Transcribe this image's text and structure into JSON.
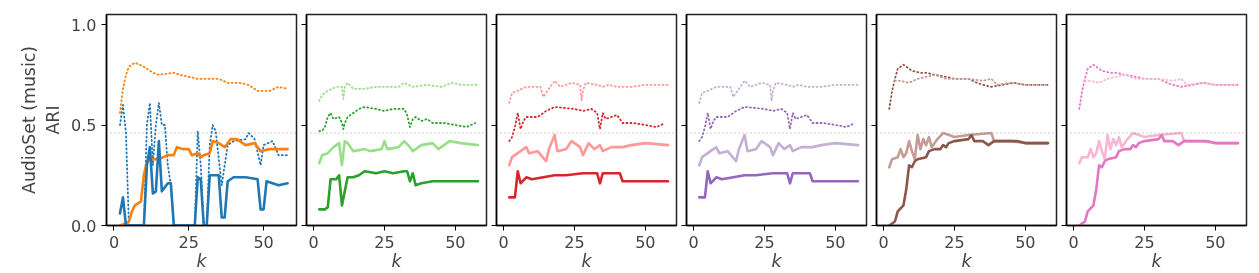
{
  "chart_data": [
    {
      "type": "line",
      "ylabel": "AudioSet (music)\nARI",
      "xlabel": "k",
      "xlim": [
        -2.5,
        61
      ],
      "ylim": [
        0,
        1.05
      ],
      "xticks": [
        0,
        25,
        50
      ],
      "yticks": [
        {
          "value": 0,
          "label": "0.0"
        },
        {
          "value": 0.5,
          "label": "0.5"
        },
        {
          "value": 1,
          "label": "1.0"
        }
      ],
      "grid": false,
      "ref_lines": [
        {
          "axis": "y",
          "value": 0.46,
          "color": "#808080",
          "line_style": "dotted"
        }
      ],
      "series": [
        {
          "color": "#ff7f0e",
          "line_style": "dotted",
          "x": [
            2,
            3,
            4,
            5,
            7,
            10,
            13,
            15,
            20,
            22,
            25,
            28,
            31,
            35,
            38,
            42,
            45,
            48,
            52,
            55,
            58
          ],
          "values": [
            0.56,
            0.68,
            0.75,
            0.79,
            0.81,
            0.79,
            0.76,
            0.75,
            0.76,
            0.75,
            0.74,
            0.73,
            0.73,
            0.73,
            0.71,
            0.71,
            0.7,
            0.67,
            0.67,
            0.69,
            0.68
          ]
        },
        {
          "color": "#1f77b4",
          "line_style": "dotted",
          "x": [
            2,
            3,
            4,
            5,
            10,
            11,
            12,
            13,
            14,
            15,
            16,
            17,
            18,
            19,
            20,
            27,
            28,
            29,
            30,
            31,
            32,
            33,
            34,
            36,
            37,
            38,
            40,
            44,
            45,
            47,
            49,
            50,
            53,
            55,
            58
          ],
          "values": [
            0.5,
            0.6,
            0.46,
            0.0,
            0.0,
            0.5,
            0.61,
            0.3,
            0.5,
            0.61,
            0.5,
            0.5,
            0.3,
            0.2,
            0.0,
            0.0,
            0.47,
            0.3,
            0.0,
            0.0,
            0.4,
            0.5,
            0.47,
            0.2,
            0.3,
            0.4,
            0.42,
            0.43,
            0.46,
            0.43,
            0.3,
            0.4,
            0.42,
            0.35,
            0.35
          ]
        },
        {
          "color": "#ff7f0e",
          "line_style": "solid",
          "x": [
            2,
            4,
            5,
            6,
            7,
            9,
            10,
            11,
            13,
            15,
            18,
            20,
            21,
            23,
            25,
            26,
            28,
            29,
            30,
            32,
            33,
            35,
            37,
            39,
            41,
            42,
            44,
            47,
            49,
            52,
            55,
            58
          ],
          "values": [
            0.0,
            0.01,
            0.02,
            0.07,
            0.1,
            0.12,
            0.25,
            0.32,
            0.33,
            0.33,
            0.35,
            0.35,
            0.39,
            0.38,
            0.38,
            0.35,
            0.36,
            0.34,
            0.35,
            0.36,
            0.42,
            0.41,
            0.39,
            0.43,
            0.43,
            0.42,
            0.4,
            0.41,
            0.37,
            0.38,
            0.38,
            0.38
          ]
        },
        {
          "color": "#1f77b4",
          "line_style": "solid",
          "x": [
            2,
            3,
            4,
            10,
            11,
            12,
            13,
            14,
            15,
            16,
            18,
            19,
            20,
            27,
            28,
            29,
            30,
            31,
            32,
            35,
            36,
            37,
            38,
            40,
            44,
            48,
            49,
            50,
            51,
            55,
            58
          ],
          "values": [
            0.06,
            0.14,
            0.0,
            0.0,
            0.3,
            0.39,
            0.16,
            0.17,
            0.42,
            0.17,
            0.21,
            0.21,
            0.0,
            0.0,
            0.24,
            0.23,
            0.0,
            0.0,
            0.25,
            0.25,
            0.04,
            0.04,
            0.22,
            0.24,
            0.24,
            0.23,
            0.08,
            0.08,
            0.22,
            0.2,
            0.21
          ]
        }
      ]
    },
    {
      "type": "line",
      "xlabel": "k",
      "xlim": [
        -2.5,
        61
      ],
      "ylim": [
        0,
        1.05
      ],
      "xticks": [
        0,
        25,
        50
      ],
      "yticks": [
        0,
        0.5,
        1
      ],
      "tick_labels": "x",
      "grid": false,
      "ref_lines": [
        {
          "axis": "y",
          "value": 0.46,
          "color": "#808080",
          "line_style": "dotted"
        }
      ],
      "series": [
        {
          "color": "#98df8a",
          "line_style": "dotted",
          "x": [
            2,
            3,
            5,
            8,
            10,
            10.5,
            11,
            12,
            14,
            18,
            22,
            25,
            30,
            32,
            35,
            40,
            45,
            49,
            52,
            58
          ],
          "values": [
            0.62,
            0.65,
            0.67,
            0.69,
            0.69,
            0.63,
            0.69,
            0.71,
            0.68,
            0.68,
            0.69,
            0.69,
            0.69,
            0.71,
            0.69,
            0.7,
            0.69,
            0.71,
            0.7,
            0.7
          ]
        },
        {
          "color": "#2ca02c",
          "line_style": "dotted",
          "x": [
            2,
            3,
            4,
            5,
            6,
            7,
            9,
            10,
            10.5,
            11,
            12,
            14,
            16,
            18,
            22,
            25,
            28,
            32,
            33,
            34,
            35,
            36,
            38,
            40,
            42,
            46,
            50,
            54,
            57
          ],
          "values": [
            0.47,
            0.47,
            0.49,
            0.54,
            0.56,
            0.53,
            0.54,
            0.51,
            0.48,
            0.51,
            0.54,
            0.56,
            0.58,
            0.59,
            0.58,
            0.57,
            0.58,
            0.58,
            0.55,
            0.49,
            0.53,
            0.54,
            0.52,
            0.53,
            0.51,
            0.51,
            0.5,
            0.49,
            0.51
          ]
        },
        {
          "color": "#98df8a",
          "line_style": "solid",
          "x": [
            2,
            3,
            5,
            7,
            9,
            10,
            11,
            12,
            14,
            18,
            20,
            24,
            25,
            26,
            30,
            32,
            34,
            35,
            38,
            42,
            44,
            48,
            52,
            58
          ],
          "values": [
            0.31,
            0.35,
            0.36,
            0.39,
            0.41,
            0.3,
            0.42,
            0.41,
            0.37,
            0.38,
            0.37,
            0.38,
            0.42,
            0.38,
            0.39,
            0.42,
            0.39,
            0.37,
            0.4,
            0.41,
            0.38,
            0.42,
            0.41,
            0.4
          ]
        },
        {
          "color": "#2ca02c",
          "line_style": "solid",
          "x": [
            2,
            4,
            5,
            6,
            8,
            9,
            10,
            12,
            14,
            16,
            18,
            22,
            25,
            28,
            32,
            33,
            34,
            35,
            36,
            38,
            42,
            50,
            58
          ],
          "values": [
            0.08,
            0.08,
            0.09,
            0.23,
            0.23,
            0.25,
            0.1,
            0.24,
            0.24,
            0.25,
            0.27,
            0.26,
            0.27,
            0.26,
            0.27,
            0.27,
            0.22,
            0.26,
            0.2,
            0.21,
            0.22,
            0.22,
            0.22
          ]
        }
      ]
    },
    {
      "type": "line",
      "xlabel": "k",
      "xlim": [
        -2.5,
        61
      ],
      "ylim": [
        0,
        1.05
      ],
      "xticks": [
        0,
        25,
        50
      ],
      "yticks": [
        0,
        0.5,
        1
      ],
      "tick_labels": "x",
      "grid": false,
      "ref_lines": [
        {
          "axis": "y",
          "value": 0.46,
          "color": "#808080",
          "line_style": "dotted"
        }
      ],
      "series": [
        {
          "color": "#ff9896",
          "line_style": "dotted",
          "x": [
            2,
            3,
            5,
            8,
            10,
            13,
            14,
            16,
            18,
            20,
            24,
            27,
            27.5,
            28,
            29,
            33,
            35,
            37,
            40,
            45,
            50,
            58
          ],
          "values": [
            0.61,
            0.66,
            0.67,
            0.69,
            0.69,
            0.69,
            0.64,
            0.68,
            0.72,
            0.69,
            0.71,
            0.7,
            0.62,
            0.67,
            0.71,
            0.7,
            0.69,
            0.7,
            0.69,
            0.69,
            0.7,
            0.7
          ]
        },
        {
          "color": "#d62728",
          "line_style": "dotted",
          "x": [
            2,
            3,
            4,
            5,
            6,
            7,
            8,
            12,
            15,
            18,
            25,
            28,
            31,
            33,
            34,
            35,
            36,
            40,
            42,
            46,
            50,
            54,
            57
          ],
          "values": [
            0.42,
            0.44,
            0.49,
            0.56,
            0.48,
            0.52,
            0.54,
            0.54,
            0.57,
            0.59,
            0.58,
            0.57,
            0.58,
            0.56,
            0.48,
            0.56,
            0.53,
            0.55,
            0.51,
            0.51,
            0.5,
            0.49,
            0.51
          ]
        },
        {
          "color": "#ff9896",
          "line_style": "solid",
          "x": [
            2,
            3,
            6,
            8,
            9,
            12,
            15,
            16,
            18,
            19,
            22,
            24,
            27,
            28,
            30,
            32,
            34,
            35,
            38,
            42,
            45,
            50,
            58
          ],
          "values": [
            0.3,
            0.34,
            0.37,
            0.39,
            0.36,
            0.37,
            0.32,
            0.38,
            0.45,
            0.37,
            0.38,
            0.42,
            0.39,
            0.35,
            0.41,
            0.38,
            0.4,
            0.37,
            0.39,
            0.39,
            0.4,
            0.41,
            0.4
          ]
        },
        {
          "color": "#d62728",
          "line_style": "solid",
          "x": [
            2,
            4,
            5,
            6,
            8,
            10,
            14,
            18,
            22,
            28,
            33,
            34,
            35,
            41,
            42,
            50,
            58
          ],
          "values": [
            0.14,
            0.14,
            0.27,
            0.21,
            0.24,
            0.23,
            0.24,
            0.25,
            0.25,
            0.26,
            0.26,
            0.21,
            0.26,
            0.26,
            0.22,
            0.22,
            0.22
          ]
        }
      ]
    },
    {
      "type": "line",
      "xlabel": "k",
      "xlim": [
        -2.5,
        61
      ],
      "ylim": [
        0,
        1.05
      ],
      "xticks": [
        0,
        25,
        50
      ],
      "yticks": [
        0,
        0.5,
        1
      ],
      "tick_labels": "x",
      "grid": false,
      "ref_lines": [
        {
          "axis": "y",
          "value": 0.46,
          "color": "#808080",
          "line_style": "dotted"
        }
      ],
      "series": [
        {
          "color": "#c5b0d5",
          "line_style": "dotted",
          "x": [
            2,
            3,
            5,
            8,
            10,
            13,
            14,
            16,
            18,
            20,
            24,
            27,
            27.5,
            28,
            29,
            33,
            35,
            37,
            40,
            45,
            50,
            58
          ],
          "values": [
            0.61,
            0.66,
            0.67,
            0.69,
            0.69,
            0.69,
            0.64,
            0.68,
            0.72,
            0.69,
            0.71,
            0.7,
            0.62,
            0.67,
            0.71,
            0.7,
            0.69,
            0.7,
            0.69,
            0.69,
            0.7,
            0.7
          ]
        },
        {
          "color": "#9467bd",
          "line_style": "dotted",
          "x": [
            2,
            3,
            4,
            5,
            6,
            7,
            8,
            12,
            15,
            18,
            25,
            28,
            31,
            33,
            34,
            35,
            36,
            40,
            42,
            46,
            50,
            54,
            57
          ],
          "values": [
            0.42,
            0.44,
            0.49,
            0.56,
            0.48,
            0.52,
            0.54,
            0.54,
            0.57,
            0.59,
            0.58,
            0.57,
            0.58,
            0.56,
            0.48,
            0.56,
            0.53,
            0.55,
            0.51,
            0.51,
            0.5,
            0.49,
            0.51
          ]
        },
        {
          "color": "#c5b0d5",
          "line_style": "solid",
          "x": [
            2,
            3,
            6,
            8,
            9,
            12,
            15,
            16,
            18,
            19,
            22,
            24,
            27,
            28,
            30,
            32,
            34,
            35,
            38,
            42,
            45,
            50,
            58
          ],
          "values": [
            0.3,
            0.34,
            0.37,
            0.39,
            0.36,
            0.37,
            0.32,
            0.38,
            0.45,
            0.37,
            0.38,
            0.42,
            0.39,
            0.35,
            0.41,
            0.38,
            0.4,
            0.37,
            0.39,
            0.39,
            0.4,
            0.41,
            0.4
          ]
        },
        {
          "color": "#9467bd",
          "line_style": "solid",
          "x": [
            2,
            4,
            5,
            6,
            8,
            10,
            14,
            18,
            22,
            28,
            33,
            34,
            35,
            41,
            42,
            50,
            58
          ],
          "values": [
            0.14,
            0.14,
            0.27,
            0.21,
            0.24,
            0.23,
            0.24,
            0.25,
            0.25,
            0.26,
            0.26,
            0.21,
            0.26,
            0.26,
            0.22,
            0.22,
            0.22
          ]
        }
      ]
    },
    {
      "type": "line",
      "xlabel": "k",
      "xlim": [
        -2.5,
        61
      ],
      "ylim": [
        0,
        1.05
      ],
      "xticks": [
        0,
        25,
        50
      ],
      "yticks": [
        0,
        0.5,
        1
      ],
      "tick_labels": "x",
      "grid": false,
      "ref_lines": [
        {
          "axis": "y",
          "value": 0.46,
          "color": "#808080",
          "line_style": "dotted"
        }
      ],
      "series": [
        {
          "color": "#8c564b",
          "line_style": "dotted",
          "x": [
            2,
            3,
            4,
            5,
            7,
            10,
            13,
            15,
            18,
            22,
            25,
            30,
            33,
            35,
            38,
            42,
            46,
            50,
            58
          ],
          "values": [
            0.58,
            0.67,
            0.73,
            0.78,
            0.8,
            0.77,
            0.76,
            0.76,
            0.75,
            0.74,
            0.73,
            0.73,
            0.71,
            0.7,
            0.69,
            0.7,
            0.71,
            0.7,
            0.7
          ]
        },
        {
          "color": "#c49c94",
          "line_style": "dotted",
          "x": [
            4,
            6,
            9,
            12,
            15,
            18,
            22,
            26,
            30,
            35,
            38,
            40,
            45,
            50,
            58
          ],
          "values": [
            0.72,
            0.72,
            0.71,
            0.73,
            0.74,
            0.75,
            0.73,
            0.73,
            0.73,
            0.72,
            0.73,
            0.7,
            0.71,
            0.7,
            0.7
          ]
        },
        {
          "color": "#c49c94",
          "line_style": "solid",
          "x": [
            2,
            3,
            5,
            6,
            7,
            8,
            9,
            10,
            11,
            12,
            13,
            14,
            15,
            16,
            17,
            19,
            21,
            25,
            30,
            38,
            39,
            45,
            50,
            58
          ],
          "values": [
            0.29,
            0.33,
            0.34,
            0.38,
            0.34,
            0.36,
            0.42,
            0.37,
            0.33,
            0.45,
            0.38,
            0.43,
            0.4,
            0.44,
            0.39,
            0.43,
            0.46,
            0.44,
            0.45,
            0.46,
            0.42,
            0.42,
            0.41,
            0.41
          ]
        },
        {
          "color": "#8c564b",
          "line_style": "solid",
          "x": [
            2,
            4,
            5,
            7,
            8,
            9,
            10,
            11,
            12,
            15,
            16,
            18,
            20,
            21,
            22,
            23,
            25,
            30,
            31,
            32,
            35,
            37,
            39,
            42,
            47,
            50,
            58
          ],
          "values": [
            0.0,
            0.02,
            0.07,
            0.1,
            0.18,
            0.3,
            0.29,
            0.32,
            0.33,
            0.34,
            0.37,
            0.38,
            0.38,
            0.4,
            0.39,
            0.41,
            0.42,
            0.43,
            0.45,
            0.42,
            0.42,
            0.4,
            0.42,
            0.42,
            0.42,
            0.41,
            0.41
          ]
        }
      ]
    },
    {
      "type": "line",
      "xlabel": "k",
      "xlim": [
        -2.5,
        61
      ],
      "ylim": [
        0,
        1.05
      ],
      "xticks": [
        0,
        25,
        50
      ],
      "yticks": [
        0,
        0.5,
        1
      ],
      "tick_labels": "x",
      "grid": false,
      "ref_lines": [
        {
          "axis": "y",
          "value": 0.46,
          "color": "#808080",
          "line_style": "dotted"
        }
      ],
      "series": [
        {
          "color": "#e377c2",
          "line_style": "dotted",
          "x": [
            2,
            3,
            4,
            5,
            7,
            10,
            13,
            15,
            18,
            22,
            25,
            30,
            33,
            35,
            38,
            42,
            46,
            50,
            58
          ],
          "values": [
            0.58,
            0.67,
            0.73,
            0.78,
            0.8,
            0.77,
            0.76,
            0.76,
            0.75,
            0.74,
            0.73,
            0.73,
            0.71,
            0.7,
            0.69,
            0.7,
            0.71,
            0.7,
            0.7
          ]
        },
        {
          "color": "#f7b6d2",
          "line_style": "dotted",
          "x": [
            4,
            6,
            9,
            12,
            15,
            18,
            22,
            26,
            30,
            35,
            38,
            40,
            45,
            50,
            58
          ],
          "values": [
            0.72,
            0.72,
            0.71,
            0.73,
            0.74,
            0.75,
            0.73,
            0.73,
            0.73,
            0.72,
            0.73,
            0.7,
            0.71,
            0.7,
            0.7
          ]
        },
        {
          "color": "#f7b6d2",
          "line_style": "solid",
          "x": [
            2,
            3,
            5,
            6,
            7,
            8,
            9,
            10,
            11,
            12,
            13,
            14,
            15,
            16,
            17,
            19,
            21,
            25,
            30,
            38,
            39,
            45,
            50,
            58
          ],
          "values": [
            0.31,
            0.34,
            0.34,
            0.38,
            0.34,
            0.36,
            0.42,
            0.37,
            0.33,
            0.45,
            0.38,
            0.43,
            0.4,
            0.44,
            0.39,
            0.43,
            0.46,
            0.44,
            0.45,
            0.46,
            0.42,
            0.42,
            0.41,
            0.41
          ]
        },
        {
          "color": "#e377c2",
          "line_style": "solid",
          "x": [
            2,
            4,
            5,
            7,
            8,
            9,
            10,
            11,
            12,
            15,
            16,
            18,
            20,
            21,
            22,
            23,
            25,
            30,
            31,
            32,
            35,
            37,
            39,
            42,
            47,
            50,
            58
          ],
          "values": [
            0.0,
            0.02,
            0.07,
            0.1,
            0.18,
            0.3,
            0.29,
            0.32,
            0.33,
            0.34,
            0.37,
            0.38,
            0.38,
            0.4,
            0.39,
            0.41,
            0.42,
            0.43,
            0.45,
            0.42,
            0.42,
            0.4,
            0.42,
            0.42,
            0.42,
            0.41,
            0.41
          ]
        }
      ]
    }
  ]
}
